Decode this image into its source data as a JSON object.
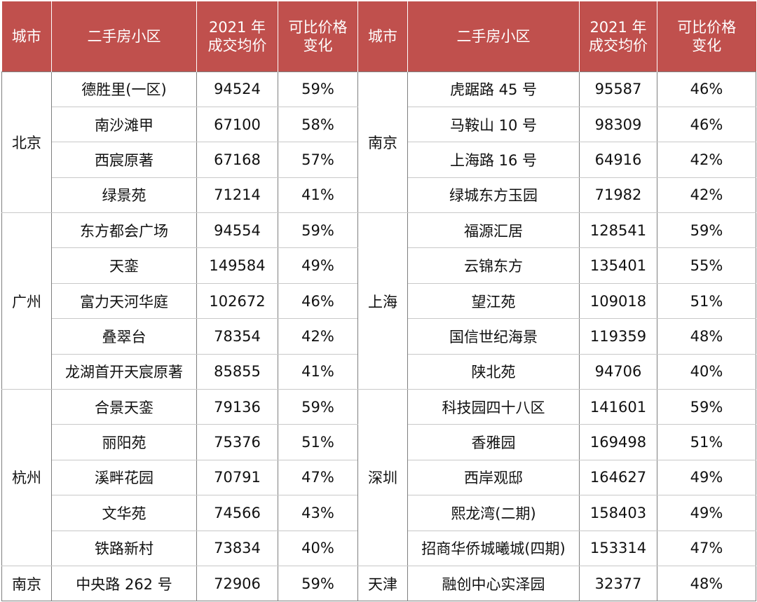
{
  "header": {
    "city": "城市",
    "community": "二手房小区",
    "price_line1": "2021 年",
    "price_line2": "成交均价",
    "change_line1": "可比价格",
    "change_line2": "变化"
  },
  "left_groups": [
    {
      "city": "北京",
      "rows": [
        {
          "name": "德胜里(一区)",
          "price": "94524",
          "change": "59%"
        },
        {
          "name": "南沙滩甲",
          "price": "67100",
          "change": "58%"
        },
        {
          "name": "西宸原著",
          "price": "67168",
          "change": "57%"
        },
        {
          "name": "绿景苑",
          "price": "71214",
          "change": "41%"
        }
      ]
    },
    {
      "city": "广州",
      "rows": [
        {
          "name": "东方都会广场",
          "price": "94554",
          "change": "59%"
        },
        {
          "name": "天銮",
          "price": "149584",
          "change": "49%"
        },
        {
          "name": "富力天河华庭",
          "price": "102672",
          "change": "46%"
        },
        {
          "name": "叠翠台",
          "price": "78354",
          "change": "42%"
        },
        {
          "name": "龙湖首开天宸原著",
          "price": "85855",
          "change": "41%"
        }
      ]
    },
    {
      "city": "杭州",
      "rows": [
        {
          "name": "合景天銮",
          "price": "79136",
          "change": "59%"
        },
        {
          "name": "丽阳苑",
          "price": "75376",
          "change": "51%"
        },
        {
          "name": "溪畔花园",
          "price": "70791",
          "change": "47%"
        },
        {
          "name": "文华苑",
          "price": "74566",
          "change": "43%"
        },
        {
          "name": "铁路新村",
          "price": "73834",
          "change": "40%"
        }
      ]
    },
    {
      "city": "南京",
      "rows": [
        {
          "name": "中央路 262 号",
          "price": "72906",
          "change": "59%"
        }
      ]
    }
  ],
  "right_groups": [
    {
      "city": "南京",
      "rows": [
        {
          "name": "虎踞路 45 号",
          "price": "95587",
          "change": "46%"
        },
        {
          "name": "马鞍山 10 号",
          "price": "98309",
          "change": "46%"
        },
        {
          "name": "上海路 16 号",
          "price": "64916",
          "change": "42%"
        },
        {
          "name": "绿城东方玉园",
          "price": "71982",
          "change": "42%"
        }
      ]
    },
    {
      "city": "上海",
      "rows": [
        {
          "name": "福源汇居",
          "price": "128541",
          "change": "59%"
        },
        {
          "name": "云锦东方",
          "price": "135401",
          "change": "55%"
        },
        {
          "name": "望江苑",
          "price": "109018",
          "change": "51%"
        },
        {
          "name": "国信世纪海景",
          "price": "119359",
          "change": "48%"
        },
        {
          "name": "陕北苑",
          "price": "94706",
          "change": "40%"
        }
      ]
    },
    {
      "city": "深圳",
      "rows": [
        {
          "name": "科技园四十八区",
          "price": "141601",
          "change": "59%"
        },
        {
          "name": "香雅园",
          "price": "169498",
          "change": "51%"
        },
        {
          "name": "西岸观邸",
          "price": "164627",
          "change": "49%"
        },
        {
          "name": "熙龙湾(二期)",
          "price": "158403",
          "change": "49%"
        },
        {
          "name": "招商华侨城曦城(四期)",
          "price": "153314",
          "change": "47%"
        }
      ]
    },
    {
      "city": "天津",
      "rows": [
        {
          "name": "融创中心实泽园",
          "price": "32377",
          "change": "48%"
        }
      ]
    }
  ]
}
